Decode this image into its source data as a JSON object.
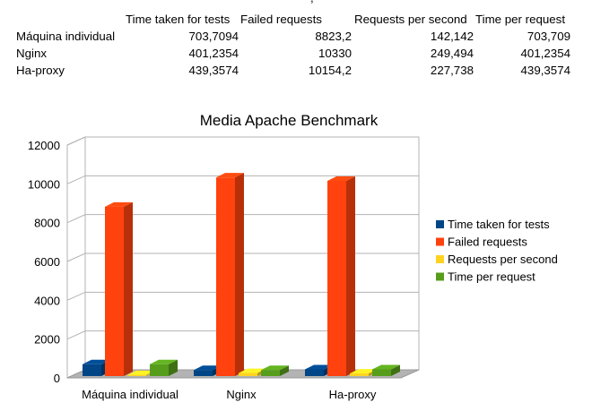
{
  "table": {
    "top_fragment": ",",
    "headers": [
      "",
      "Time taken for tests",
      "Failed requests",
      "Requests per second",
      "Time per request"
    ],
    "rows": [
      {
        "label": "Máquina individual",
        "values": [
          "703,7094",
          "8823,2",
          "142,142",
          "703,709"
        ]
      },
      {
        "label": "Nginx",
        "values": [
          "401,2354",
          "10330",
          "249,494",
          "401,2354"
        ]
      },
      {
        "label": "Ha-proxy",
        "values": [
          "439,3574",
          "10154,2",
          "227,738",
          "439,3574"
        ]
      }
    ]
  },
  "chart_data": {
    "type": "bar",
    "title": "Media Apache Benchmark",
    "categories": [
      "Máquina individual",
      "Nginx",
      "Ha-proxy"
    ],
    "series": [
      {
        "name": "Time taken for tests",
        "values": [
          703.7094,
          401.2354,
          439.3574
        ],
        "color": "#004586"
      },
      {
        "name": "Failed requests",
        "values": [
          8823.2,
          10330,
          10154.2
        ],
        "color": "#ff420e"
      },
      {
        "name": "Requests per second",
        "values": [
          142.142,
          249.494,
          227.738
        ],
        "color": "#ffd320"
      },
      {
        "name": "Time per request",
        "values": [
          703.709,
          401.2354,
          439.3574
        ],
        "color": "#579d1c"
      }
    ],
    "ylim": [
      0,
      12000
    ],
    "yticks": [
      "0",
      "2000",
      "4000",
      "6000",
      "8000",
      "10000",
      "12000"
    ],
    "grid": true,
    "three_d": true,
    "legend_position": "right"
  }
}
